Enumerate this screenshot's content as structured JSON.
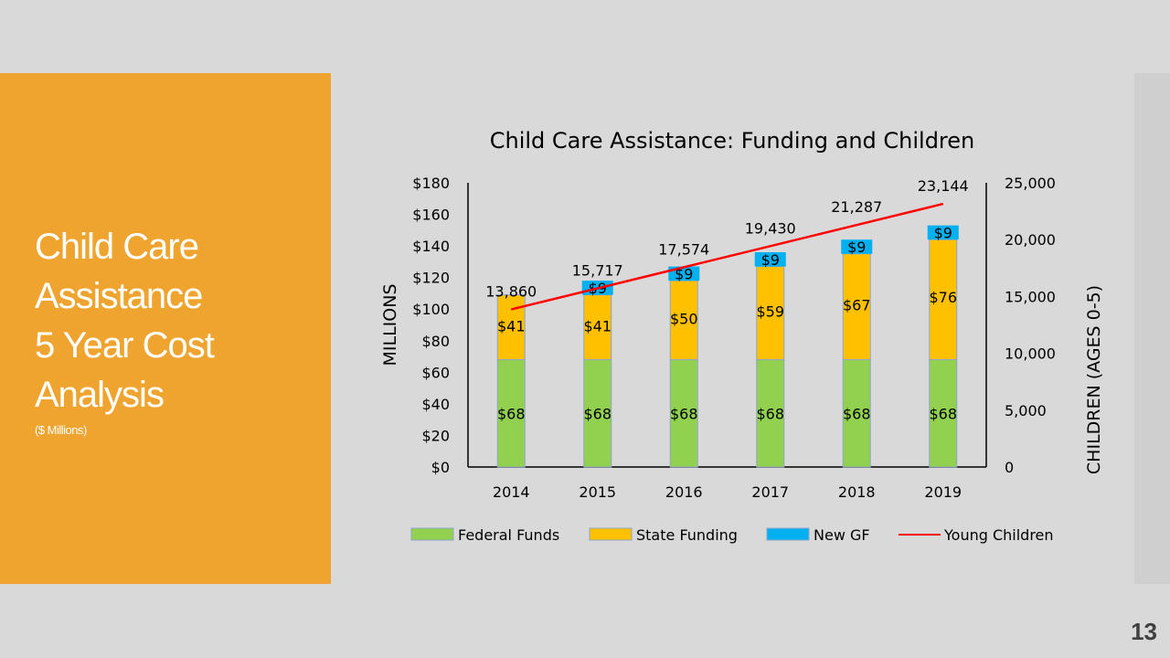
{
  "slide": {
    "title_lines": [
      "Child Care",
      "Assistance",
      "5 Year Cost",
      "Analysis"
    ],
    "subtitle": "($ Millions)",
    "page_number": "13"
  },
  "colors": {
    "panel": "#eea42f",
    "federal": "#92d050",
    "state": "#ffc000",
    "new_gf": "#00b0f0",
    "line": "#ff0000"
  },
  "chart_data": {
    "type": "bar",
    "stacked": true,
    "title": "Child Care Assistance:  Funding and Children",
    "categories": [
      "2014",
      "2015",
      "2016",
      "2017",
      "2018",
      "2019"
    ],
    "series": [
      {
        "name": "Federal Funds",
        "values": [
          68,
          68,
          68,
          68,
          68,
          68
        ],
        "labels": [
          "$68",
          "$68",
          "$68",
          "$68",
          "$68",
          "$68"
        ],
        "color": "#92d050"
      },
      {
        "name": "State Funding",
        "values": [
          41,
          41,
          50,
          59,
          67,
          76
        ],
        "labels": [
          "$41",
          "$41",
          "$50",
          "$59",
          "$67",
          "$76"
        ],
        "color": "#ffc000"
      },
      {
        "name": "New GF",
        "values": [
          0,
          9,
          9,
          9,
          9,
          9
        ],
        "labels": [
          "",
          "$9",
          "$9",
          "$9",
          "$9",
          "$9"
        ],
        "color": "#00b0f0"
      }
    ],
    "line_series": {
      "name": "Young Children",
      "axis": "secondary",
      "values": [
        13860,
        15717,
        17574,
        19430,
        21287,
        23144
      ],
      "labels": [
        "13,860",
        "15,717",
        "17,574",
        "19,430",
        "21,287",
        "23,144"
      ],
      "color": "#ff0000"
    },
    "ylabel": "MILLIONS",
    "ylim": [
      0,
      180
    ],
    "y_ticks": [
      "$0",
      "$20",
      "$40",
      "$60",
      "$80",
      "$100",
      "$120",
      "$140",
      "$160",
      "$180"
    ],
    "y2label": "CHILDREN (AGES 0-5)",
    "y2lim": [
      0,
      25000
    ],
    "y2_ticks": [
      "0",
      "5,000",
      "10,000",
      "15,000",
      "20,000",
      "25,000"
    ],
    "legend": "bottom",
    "grid": false
  }
}
